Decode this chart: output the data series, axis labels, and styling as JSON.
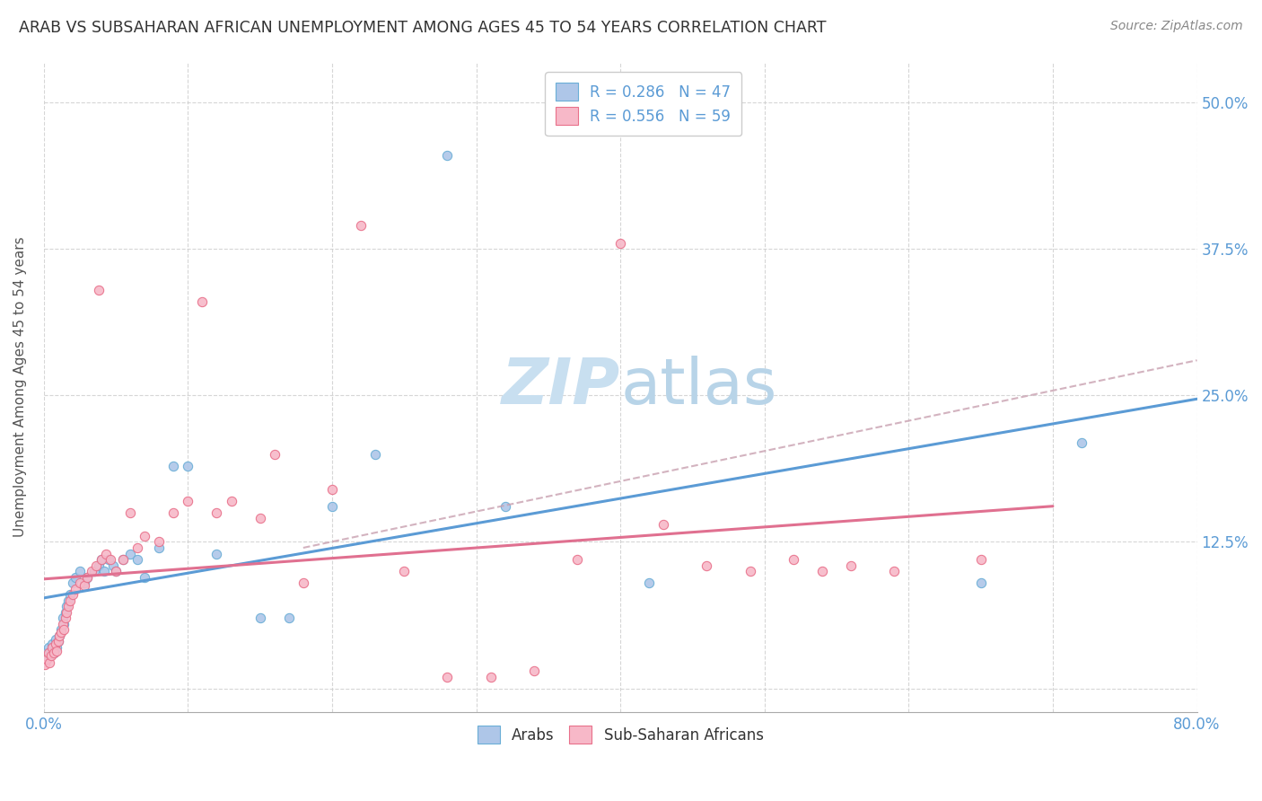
{
  "title": "ARAB VS SUBSAHARAN AFRICAN UNEMPLOYMENT AMONG AGES 45 TO 54 YEARS CORRELATION CHART",
  "source": "Source: ZipAtlas.com",
  "ylabel": "Unemployment Among Ages 45 to 54 years",
  "xmin": 0.0,
  "xmax": 0.8,
  "ymin": -0.02,
  "ymax": 0.535,
  "arab_color": "#aec6e8",
  "sub_color": "#f7b8c8",
  "arab_edge_color": "#6aaed6",
  "sub_edge_color": "#e8708a",
  "arab_line_color": "#5b9bd5",
  "sub_line_color": "#e07090",
  "dashed_line_color": "#c8a0b0",
  "watermark_color": "#c8dff0",
  "background_color": "#ffffff",
  "grid_color": "#cccccc",
  "title_color": "#333333",
  "axis_label_color": "#5b9bd5",
  "arab_x": [
    0.001,
    0.002,
    0.003,
    0.004,
    0.005,
    0.006,
    0.007,
    0.008,
    0.009,
    0.01,
    0.011,
    0.012,
    0.013,
    0.014,
    0.015,
    0.016,
    0.017,
    0.018,
    0.02,
    0.022,
    0.025,
    0.028,
    0.03,
    0.035,
    0.038,
    0.04,
    0.042,
    0.045,
    0.048,
    0.05,
    0.055,
    0.06,
    0.065,
    0.07,
    0.08,
    0.09,
    0.1,
    0.12,
    0.15,
    0.17,
    0.2,
    0.23,
    0.28,
    0.32,
    0.42,
    0.65,
    0.72
  ],
  "arab_y": [
    0.03,
    0.025,
    0.035,
    0.028,
    0.032,
    0.038,
    0.03,
    0.042,
    0.035,
    0.04,
    0.045,
    0.05,
    0.06,
    0.055,
    0.065,
    0.07,
    0.075,
    0.08,
    0.09,
    0.095,
    0.1,
    0.09,
    0.095,
    0.1,
    0.105,
    0.11,
    0.1,
    0.11,
    0.105,
    0.1,
    0.11,
    0.115,
    0.11,
    0.095,
    0.12,
    0.19,
    0.19,
    0.115,
    0.06,
    0.06,
    0.155,
    0.2,
    0.455,
    0.155,
    0.09,
    0.09,
    0.21
  ],
  "sub_x": [
    0.001,
    0.002,
    0.003,
    0.004,
    0.005,
    0.006,
    0.007,
    0.008,
    0.009,
    0.01,
    0.011,
    0.012,
    0.013,
    0.014,
    0.015,
    0.016,
    0.017,
    0.018,
    0.02,
    0.022,
    0.025,
    0.028,
    0.03,
    0.033,
    0.036,
    0.038,
    0.04,
    0.043,
    0.046,
    0.05,
    0.055,
    0.06,
    0.065,
    0.07,
    0.08,
    0.09,
    0.1,
    0.11,
    0.12,
    0.13,
    0.15,
    0.16,
    0.18,
    0.2,
    0.22,
    0.25,
    0.28,
    0.31,
    0.34,
    0.37,
    0.4,
    0.43,
    0.46,
    0.49,
    0.52,
    0.54,
    0.56,
    0.59,
    0.65
  ],
  "sub_y": [
    0.02,
    0.025,
    0.03,
    0.022,
    0.028,
    0.035,
    0.03,
    0.038,
    0.032,
    0.04,
    0.045,
    0.048,
    0.055,
    0.05,
    0.06,
    0.065,
    0.07,
    0.075,
    0.08,
    0.085,
    0.09,
    0.088,
    0.095,
    0.1,
    0.105,
    0.34,
    0.11,
    0.115,
    0.11,
    0.1,
    0.11,
    0.15,
    0.12,
    0.13,
    0.125,
    0.15,
    0.16,
    0.33,
    0.15,
    0.16,
    0.145,
    0.2,
    0.09,
    0.17,
    0.395,
    0.1,
    0.01,
    0.01,
    0.015,
    0.11,
    0.38,
    0.14,
    0.105,
    0.1,
    0.11,
    0.1,
    0.105,
    0.1,
    0.11
  ],
  "ytick_values": [
    0.0,
    0.125,
    0.25,
    0.375,
    0.5
  ],
  "ytick_labels": [
    "",
    "12.5%",
    "25.0%",
    "37.5%",
    "50.0%"
  ],
  "xtick_values": [
    0.0,
    0.1,
    0.2,
    0.3,
    0.4,
    0.5,
    0.6,
    0.7,
    0.8
  ],
  "xtick_labels": [
    "0.0%",
    "",
    "",
    "",
    "",
    "",
    "",
    "",
    "80.0%"
  ]
}
